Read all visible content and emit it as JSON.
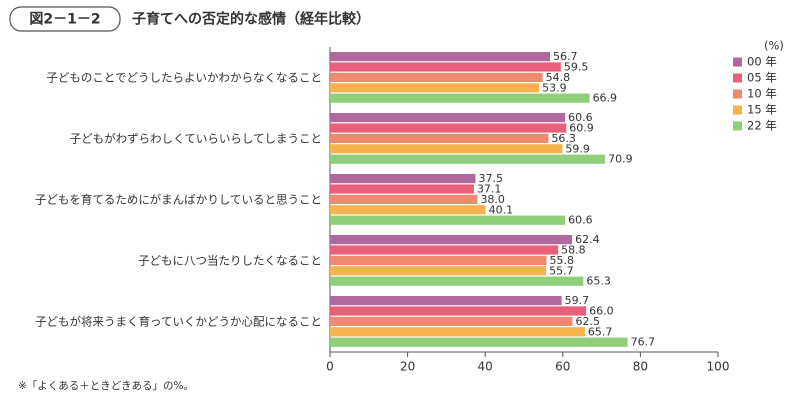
{
  "chart_data": {
    "type": "barh",
    "figure_label": "図2－1－2",
    "title": "子育てへの否定的な感情（経年比較）",
    "categories": [
      "子どものことでどうしたらよいかわからなくなること",
      "子どもがわずらわしくていらいらしてしまうこと",
      "子どもを育てるためにがまんばかりしていると思うこと",
      "子どもに八つ当たりしたくなること",
      "子どもが将来うまく育っていくかどうか心配になること"
    ],
    "series": [
      {
        "name": "00 年",
        "color": "#b0699e",
        "values": [
          56.7,
          60.6,
          37.5,
          62.4,
          59.7
        ]
      },
      {
        "name": "05 年",
        "color": "#e8607a",
        "values": [
          59.5,
          60.9,
          37.1,
          58.8,
          66.0
        ],
        "value_labels": [
          "59.5",
          "60.9",
          "37.1",
          "58.8",
          "66.0"
        ]
      },
      {
        "name": "10 年",
        "color": "#f08a6e",
        "values": [
          54.8,
          56.3,
          38.0,
          55.8,
          62.5
        ],
        "value_labels": [
          "54.8",
          "56.3",
          "38.0",
          "55.8",
          "62.5"
        ]
      },
      {
        "name": "15 年",
        "color": "#f6b24e",
        "values": [
          53.9,
          59.9,
          40.1,
          55.7,
          65.7
        ]
      },
      {
        "name": "22 年",
        "color": "#8fcf7a",
        "values": [
          66.9,
          70.9,
          60.6,
          65.3,
          76.7
        ]
      }
    ],
    "unit": "(%)",
    "xlim": [
      0,
      100
    ],
    "xticks": [
      0,
      20,
      40,
      60,
      80,
      100
    ],
    "note": "※「よくある＋ときどきある」の%。"
  }
}
